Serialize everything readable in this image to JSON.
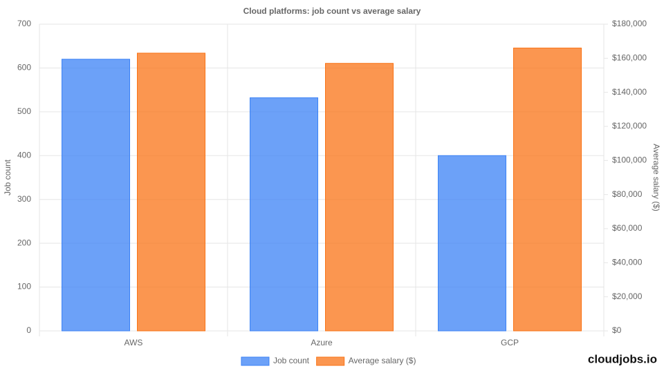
{
  "chart_data": {
    "type": "bar",
    "title": "Cloud platforms: job count vs average salary",
    "categories": [
      "AWS",
      "Azure",
      "GCP"
    ],
    "series": [
      {
        "name": "Job count",
        "color": "#3b82f6",
        "values": [
          620,
          532,
          400
        ]
      },
      {
        "name": "Average salary ($)",
        "color": "#f97316",
        "axis": "y2",
        "values": [
          163000,
          157000,
          166000
        ]
      }
    ],
    "ylabel": "Job count",
    "y2label": "Average salary ($)",
    "ylim": [
      0,
      700
    ],
    "yticks": [
      0,
      100,
      200,
      300,
      400,
      500,
      600,
      700
    ],
    "y2lim": [
      0,
      180000
    ],
    "y2ticks": [
      {
        "value": 0,
        "label": "$0"
      },
      {
        "value": 20000,
        "label": "$20,000"
      },
      {
        "value": 40000,
        "label": "$40,000"
      },
      {
        "value": 60000,
        "label": "$60,000"
      },
      {
        "value": 80000,
        "label": "$80,000"
      },
      {
        "value": 100000,
        "label": "$100,000"
      },
      {
        "value": 120000,
        "label": "$120,000"
      },
      {
        "value": 140000,
        "label": "$140,000"
      },
      {
        "value": 160000,
        "label": "$160,000"
      },
      {
        "value": 180000,
        "label": "$180,000"
      }
    ],
    "grid": true,
    "legend": "bottom",
    "watermark": "cloudjobs.io"
  }
}
